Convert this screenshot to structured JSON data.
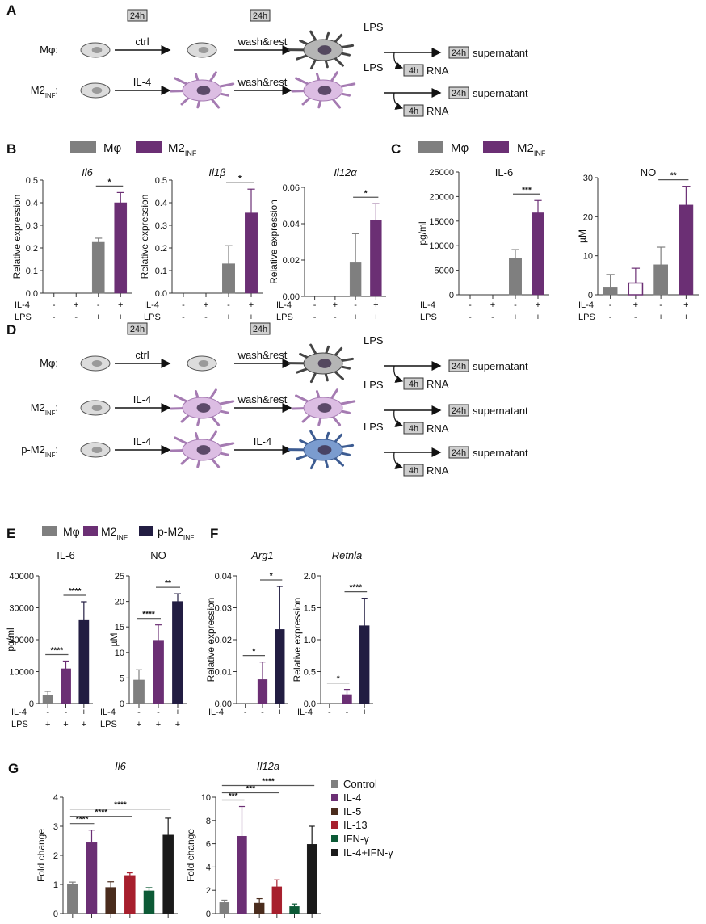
{
  "colors": {
    "gray": "#7f7f7f",
    "purple": "#6b2f74",
    "navy": "#221d42",
    "brown": "#4a2c1d",
    "red": "#a71f2d",
    "green": "#0c5a36",
    "black": "#1a1a1a"
  },
  "panel_a": {
    "label": "A",
    "time_boxes": [
      "24h",
      "24h"
    ],
    "rows": [
      {
        "name": "Mφ",
        "sub": "",
        "suffix": ":",
        "step1": "ctrl",
        "step2": "wash&rest",
        "stim": "LPS",
        "sup_time": "24h",
        "sup": "supernatant",
        "rna_time": "4h",
        "rna": "RNA",
        "cells": [
          "resting-macrophage",
          "resting-macrophage",
          "activated-gray-macrophage"
        ]
      },
      {
        "name": "M2",
        "sub": "INF",
        "suffix": ":",
        "step1": "IL-4",
        "step2": "wash&rest",
        "stim": "LPS",
        "sup_time": "24h",
        "sup": "supernatant",
        "rna_time": "4h",
        "rna": "RNA",
        "cells": [
          "resting-macrophage",
          "purple-macrophage",
          "purple-macrophage"
        ]
      }
    ]
  },
  "panel_d": {
    "label": "D",
    "time_boxes": [
      "24h",
      "24h"
    ],
    "rows": [
      {
        "name": "Mφ",
        "sub": "",
        "suffix": ":",
        "step1": "ctrl",
        "step2": "wash&rest",
        "stim": "LPS",
        "sup_time": "24h",
        "sup": "supernatant",
        "rna_time": "4h",
        "rna": "RNA",
        "cells": [
          "resting-macrophage",
          "resting-macrophage",
          "activated-gray-macrophage"
        ]
      },
      {
        "name": "M2",
        "sub": "INF",
        "suffix": ":",
        "step1": "IL-4",
        "step2": "wash&rest",
        "stim": "LPS",
        "sup_time": "24h",
        "sup": "supernatant",
        "rna_time": "4h",
        "rna": "RNA",
        "cells": [
          "resting-macrophage",
          "purple-macrophage",
          "purple-macrophage"
        ]
      },
      {
        "name": "p-M2",
        "sub": "INF",
        "suffix": ":",
        "step1": "IL-4",
        "step2": "IL-4",
        "stim": "LPS",
        "sup_time": "24h",
        "sup": "supernatant",
        "rna_time": "4h",
        "rna": "RNA",
        "cells": [
          "resting-macrophage",
          "purple-macrophage",
          "blue-macrophage"
        ]
      }
    ]
  },
  "panel_labels": {
    "B": "B",
    "C": "C",
    "E": "E",
    "F": "F",
    "G": "G"
  },
  "legends": {
    "B": [
      {
        "name": "Mφ",
        "sub": "",
        "color": "#7f7f7f"
      },
      {
        "name": "M2",
        "sub": "INF",
        "color": "#6b2f74"
      }
    ],
    "C": [
      {
        "name": "Mφ",
        "sub": "",
        "color": "#7f7f7f"
      },
      {
        "name": "M2",
        "sub": "INF",
        "color": "#6b2f74"
      }
    ],
    "E": [
      {
        "name": "Mφ",
        "sub": "",
        "color": "#7f7f7f"
      },
      {
        "name": "M2",
        "sub": "INF",
        "color": "#6b2f74"
      },
      {
        "name": "p-M2",
        "sub": "INF",
        "color": "#221d42"
      }
    ],
    "G": [
      {
        "name": "Control",
        "sub": "",
        "color": "#7f7f7f"
      },
      {
        "name": "IL-4",
        "sub": "",
        "color": "#6b2f74"
      },
      {
        "name": "IL-5",
        "sub": "",
        "color": "#4a2c1d"
      },
      {
        "name": "IL-13",
        "sub": "",
        "color": "#a71f2d"
      },
      {
        "name": "IFN-γ",
        "sub": "",
        "color": "#0c5a36"
      },
      {
        "name": "IL-4+IFN-γ",
        "sub": "",
        "color": "#1a1a1a"
      }
    ]
  },
  "chart_data": [
    {
      "panel": "B",
      "type": "bar",
      "title": "Il6",
      "italic": true,
      "ylabel": "Relative expression",
      "ylim": [
        0,
        0.5
      ],
      "yticks": [
        "0.0",
        "0.1",
        "0.2",
        "0.3",
        "0.4",
        "0.5"
      ],
      "values": [
        0,
        0,
        0.225,
        0.4
      ],
      "errors": [
        0,
        0,
        0.018,
        0.045
      ],
      "colors": [
        "#7f7f7f",
        "#6b2f74",
        "#7f7f7f",
        "#6b2f74"
      ],
      "open": [
        false,
        false,
        false,
        false
      ],
      "rows": [
        {
          "label": "IL-4",
          "values": [
            "-",
            "+",
            "-",
            "+"
          ]
        },
        {
          "label": "LPS",
          "values": [
            "-",
            "-",
            "+",
            "+"
          ]
        }
      ],
      "significance": [
        {
          "from": 2,
          "to": 3,
          "label": "*"
        }
      ]
    },
    {
      "panel": "B",
      "type": "bar",
      "title": "Il1β",
      "italic": true,
      "ylabel": "Relative expression",
      "ylim": [
        0,
        0.5
      ],
      "yticks": [
        "0.0",
        "0.1",
        "0.2",
        "0.3",
        "0.4",
        "0.5"
      ],
      "values": [
        0,
        0,
        0.13,
        0.355
      ],
      "errors": [
        0,
        0,
        0.08,
        0.105
      ],
      "colors": [
        "#7f7f7f",
        "#6b2f74",
        "#7f7f7f",
        "#6b2f74"
      ],
      "open": [
        false,
        false,
        false,
        false
      ],
      "rows": [
        {
          "label": "IL-4",
          "values": [
            "-",
            "+",
            "-",
            "+"
          ]
        },
        {
          "label": "LPS",
          "values": [
            "-",
            "-",
            "+",
            "+"
          ]
        }
      ],
      "significance": [
        {
          "from": 2,
          "to": 3,
          "label": "*"
        }
      ]
    },
    {
      "panel": "B",
      "type": "bar",
      "title": "Il12α",
      "italic": true,
      "ylabel": "Relative expression",
      "ylim": [
        0,
        0.06
      ],
      "yticks": [
        "0.00",
        "0.02",
        "0.04",
        "0.06"
      ],
      "values": [
        0,
        0,
        0.0185,
        0.042
      ],
      "errors": [
        0,
        0,
        0.016,
        0.009
      ],
      "colors": [
        "#7f7f7f",
        "#6b2f74",
        "#7f7f7f",
        "#6b2f74"
      ],
      "open": [
        false,
        false,
        false,
        false
      ],
      "rows": [
        {
          "label": "IL-4",
          "values": [
            "-",
            "+",
            "-",
            "+"
          ]
        },
        {
          "label": "LPS",
          "values": [
            "-",
            "-",
            "+",
            "+"
          ]
        }
      ],
      "significance": [
        {
          "from": 2,
          "to": 3,
          "label": "*"
        }
      ]
    },
    {
      "panel": "C",
      "type": "bar",
      "title": "IL-6",
      "italic": false,
      "ylabel": "pg/ml",
      "ylim": [
        0,
        25000
      ],
      "yticks": [
        "0",
        "5000",
        "10000",
        "15000",
        "20000",
        "25000"
      ],
      "values": [
        0,
        0,
        7400,
        16700
      ],
      "errors": [
        0,
        0,
        1800,
        2500
      ],
      "colors": [
        "#7f7f7f",
        "#6b2f74",
        "#7f7f7f",
        "#6b2f74"
      ],
      "open": [
        false,
        false,
        false,
        false
      ],
      "rows": [
        {
          "label": "IL-4",
          "values": [
            "-",
            "+",
            "-",
            "+"
          ]
        },
        {
          "label": "LPS",
          "values": [
            "-",
            "-",
            "+",
            "+"
          ]
        }
      ],
      "significance": [
        {
          "from": 2,
          "to": 3,
          "label": "***"
        }
      ]
    },
    {
      "panel": "C",
      "type": "bar",
      "title": "NO",
      "italic": false,
      "ylabel": "µM",
      "ylim": [
        0,
        30
      ],
      "yticks": [
        "0",
        "10",
        "20",
        "30"
      ],
      "values": [
        2,
        3,
        7.7,
        23
      ],
      "errors": [
        3.2,
        3.8,
        4.5,
        4.8
      ],
      "colors": [
        "#7f7f7f",
        "#6b2f74",
        "#7f7f7f",
        "#6b2f74"
      ],
      "open": [
        false,
        true,
        false,
        false
      ],
      "rows": [
        {
          "label": "IL-4",
          "values": [
            "-",
            "+",
            "-",
            "+"
          ]
        },
        {
          "label": "LPS",
          "values": [
            "-",
            "-",
            "+",
            "+"
          ]
        }
      ],
      "significance": [
        {
          "from": 2,
          "to": 3,
          "label": "**"
        }
      ]
    },
    {
      "panel": "E",
      "type": "bar",
      "title": "IL-6",
      "italic": false,
      "ylabel": "pg/ml",
      "ylim": [
        0,
        40000
      ],
      "yticks": [
        "0",
        "10000",
        "20000",
        "30000",
        "40000"
      ],
      "values": [
        2600,
        10900,
        26300
      ],
      "errors": [
        1200,
        2400,
        5600
      ],
      "colors": [
        "#7f7f7f",
        "#6b2f74",
        "#221d42"
      ],
      "open": [
        false,
        false,
        false
      ],
      "rows": [
        {
          "label": "IL-4",
          "values": [
            "-",
            "-",
            "+"
          ]
        },
        {
          "label": "LPS",
          "values": [
            "+",
            "+",
            "+"
          ]
        }
      ],
      "significance": [
        {
          "from": 0,
          "to": 1,
          "label": "****"
        },
        {
          "from": 1,
          "to": 2,
          "label": "****"
        }
      ]
    },
    {
      "panel": "E",
      "type": "bar",
      "title": "NO",
      "italic": false,
      "ylabel": "µM",
      "ylim": [
        0,
        25
      ],
      "yticks": [
        "0",
        "5",
        "10",
        "15",
        "20",
        "25"
      ],
      "values": [
        4.6,
        12.4,
        20
      ],
      "errors": [
        2,
        3,
        1.5
      ],
      "colors": [
        "#7f7f7f",
        "#6b2f74",
        "#221d42"
      ],
      "open": [
        false,
        false,
        false
      ],
      "rows": [
        {
          "label": "IL-4",
          "values": [
            "-",
            "-",
            "+"
          ]
        },
        {
          "label": "LPS",
          "values": [
            "+",
            "+",
            "+"
          ]
        }
      ],
      "significance": [
        {
          "from": 0,
          "to": 1,
          "label": "****"
        },
        {
          "from": 1,
          "to": 2,
          "label": "**"
        }
      ]
    },
    {
      "panel": "F",
      "type": "bar",
      "title": "Arg1",
      "italic": true,
      "ylabel": "Relative expression",
      "ylim": [
        0,
        0.04
      ],
      "yticks": [
        "0.00",
        "0.01",
        "0.02",
        "0.03",
        "0.04"
      ],
      "values": [
        0,
        0.0075,
        0.0232
      ],
      "errors": [
        0,
        0.0055,
        0.0135
      ],
      "colors": [
        "#7f7f7f",
        "#6b2f74",
        "#221d42"
      ],
      "open": [
        false,
        false,
        false
      ],
      "rows": [
        {
          "label": "IL-4",
          "values": [
            "-",
            "-",
            "+"
          ]
        }
      ],
      "significance": [
        {
          "from": 0,
          "to": 1,
          "label": "*"
        },
        {
          "from": 1,
          "to": 2,
          "label": "*"
        }
      ]
    },
    {
      "panel": "F",
      "type": "bar",
      "title": "Retnla",
      "italic": true,
      "ylabel": "Relative expression",
      "ylim": [
        0,
        2.0
      ],
      "yticks": [
        "0.0",
        "0.5",
        "1.0",
        "1.5",
        "2.0"
      ],
      "values": [
        0,
        0.14,
        1.22
      ],
      "errors": [
        0,
        0.08,
        0.43
      ],
      "colors": [
        "#7f7f7f",
        "#6b2f74",
        "#221d42"
      ],
      "open": [
        false,
        false,
        false
      ],
      "rows": [
        {
          "label": "IL-4",
          "values": [
            "-",
            "-",
            "+"
          ]
        }
      ],
      "significance": [
        {
          "from": 0,
          "to": 1,
          "label": "*"
        },
        {
          "from": 1,
          "to": 2,
          "label": "****"
        }
      ]
    },
    {
      "panel": "G",
      "type": "bar",
      "title": "Il6",
      "italic": true,
      "ylabel": "Fold change",
      "ylim": [
        0,
        4
      ],
      "yticks": [
        "0",
        "1",
        "2",
        "3",
        "4"
      ],
      "values": [
        1,
        2.44,
        0.9,
        1.31,
        0.78,
        2.7
      ],
      "errors": [
        0.08,
        0.43,
        0.19,
        0.09,
        0.11,
        0.58
      ],
      "colors": [
        "#7f7f7f",
        "#6b2f74",
        "#4a2c1d",
        "#a71f2d",
        "#0c5a36",
        "#1a1a1a"
      ],
      "open": [
        false,
        false,
        false,
        false,
        false,
        false
      ],
      "rows": [],
      "significance": [
        {
          "from": 0,
          "to": 1,
          "label": "****"
        },
        {
          "from": 0,
          "to": 3,
          "label": "****"
        },
        {
          "from": 0,
          "to": 5,
          "label": "****"
        }
      ]
    },
    {
      "panel": "G",
      "type": "bar",
      "title": "Il12a",
      "italic": true,
      "ylabel": "Fold change",
      "ylim": [
        0,
        10
      ],
      "yticks": [
        "0",
        "2",
        "4",
        "6",
        "8",
        "10"
      ],
      "values": [
        0.95,
        6.65,
        0.9,
        2.3,
        0.6,
        5.95
      ],
      "errors": [
        0.2,
        2.55,
        0.38,
        0.6,
        0.22,
        1.55
      ],
      "colors": [
        "#7f7f7f",
        "#6b2f74",
        "#4a2c1d",
        "#a71f2d",
        "#0c5a36",
        "#1a1a1a"
      ],
      "open": [
        false,
        false,
        false,
        false,
        false,
        false
      ],
      "rows": [],
      "significance": [
        {
          "from": 0,
          "to": 1,
          "label": "***"
        },
        {
          "from": 0,
          "to": 3,
          "label": "***"
        },
        {
          "from": 0,
          "to": 5,
          "label": "****"
        }
      ]
    }
  ]
}
